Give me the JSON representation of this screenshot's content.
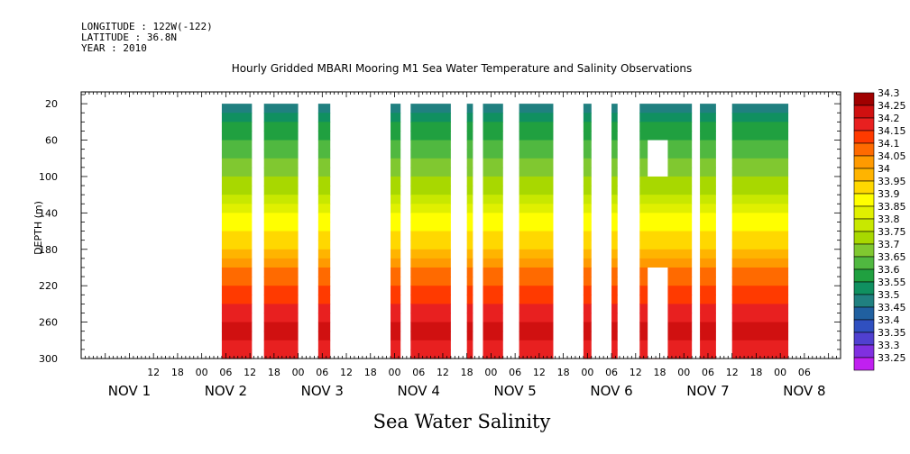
{
  "header": {
    "longitude": "LONGITUDE : 122W(-122)",
    "latitude": "LATITUDE : 36.8N",
    "year": "YEAR : 2010"
  },
  "chart_data": {
    "type": "heatmap",
    "title": "Hourly Gridded MBARI Mooring M1 Sea Water Temperature and Salinity Observations",
    "xlabel": "Sea Water Salinity",
    "ylabel": "DEPTH (m)",
    "x_unit": "hours since NOV 1 00:00 (2010)",
    "xlim": [
      -6,
      183
    ],
    "ylim": [
      300,
      7
    ],
    "y_ticks": [
      20,
      60,
      100,
      140,
      180,
      220,
      260,
      300
    ],
    "x_hour_ticks": [
      {
        "h": 12,
        "label": "12"
      },
      {
        "h": 18,
        "label": "18"
      },
      {
        "h": 24,
        "label": "00"
      },
      {
        "h": 30,
        "label": "06"
      },
      {
        "h": 36,
        "label": "12"
      },
      {
        "h": 42,
        "label": "18"
      },
      {
        "h": 48,
        "label": "00"
      },
      {
        "h": 54,
        "label": "06"
      },
      {
        "h": 60,
        "label": "12"
      },
      {
        "h": 66,
        "label": "18"
      },
      {
        "h": 72,
        "label": "00"
      },
      {
        "h": 78,
        "label": "06"
      },
      {
        "h": 84,
        "label": "12"
      },
      {
        "h": 90,
        "label": "18"
      },
      {
        "h": 96,
        "label": "00"
      },
      {
        "h": 102,
        "label": "06"
      },
      {
        "h": 108,
        "label": "12"
      },
      {
        "h": 114,
        "label": "18"
      },
      {
        "h": 120,
        "label": "00"
      },
      {
        "h": 126,
        "label": "06"
      },
      {
        "h": 132,
        "label": "12"
      },
      {
        "h": 138,
        "label": "18"
      },
      {
        "h": 144,
        "label": "00"
      },
      {
        "h": 150,
        "label": "06"
      },
      {
        "h": 156,
        "label": "12"
      },
      {
        "h": 162,
        "label": "18"
      },
      {
        "h": 168,
        "label": "00"
      },
      {
        "h": 174,
        "label": "06"
      }
    ],
    "x_day_labels": [
      {
        "h": 6,
        "label": "NOV  1"
      },
      {
        "h": 30,
        "label": "NOV  2"
      },
      {
        "h": 54,
        "label": "NOV  3"
      },
      {
        "h": 78,
        "label": "NOV  4"
      },
      {
        "h": 102,
        "label": "NOV  5"
      },
      {
        "h": 126,
        "label": "NOV  6"
      },
      {
        "h": 150,
        "label": "NOV  7"
      },
      {
        "h": 174,
        "label": "NOV  8"
      }
    ],
    "colorbar": {
      "levels": [
        "34.3",
        "34.25",
        "34.2",
        "34.15",
        "34.1",
        "34.05",
        "34",
        "33.95",
        "33.9",
        "33.85",
        "33.8",
        "33.75",
        "33.7",
        "33.65",
        "33.6",
        "33.55",
        "33.5",
        "33.45",
        "33.4",
        "33.35",
        "33.3",
        "33.25"
      ],
      "colors": [
        "#a00000",
        "#d01010",
        "#e82020",
        "#ff3a00",
        "#ff6a00",
        "#ff9a00",
        "#ffb400",
        "#ffd800",
        "#ffff00",
        "#e0f000",
        "#c8e800",
        "#a8d800",
        "#80c830",
        "#50b840",
        "#20a040",
        "#109060",
        "#208080",
        "#2060a0",
        "#3050c0",
        "#5040d0",
        "#8030e0",
        "#c020f0"
      ]
    },
    "gaps_hours": [
      [
        -6,
        29
      ],
      [
        36.5,
        39.5
      ],
      [
        48,
        53
      ],
      [
        56,
        71
      ],
      [
        72,
        72
      ],
      [
        73.5,
        76
      ],
      [
        86,
        90
      ],
      [
        91.5,
        91.5
      ],
      [
        92.5,
        94
      ],
      [
        99,
        103
      ],
      [
        111.5,
        119
      ],
      [
        121,
        126
      ],
      [
        127.5,
        128
      ],
      [
        129,
        133
      ],
      [
        146,
        148
      ],
      [
        152,
        156
      ],
      [
        170,
        183
      ]
    ],
    "data_segments_hours": [
      [
        29,
        36.5
      ],
      [
        39.5,
        48
      ],
      [
        53,
        56
      ],
      [
        71,
        73.5
      ],
      [
        76,
        86
      ],
      [
        90,
        91.5
      ],
      [
        94,
        99
      ],
      [
        103,
        111.5
      ],
      [
        119,
        121
      ],
      [
        126,
        127.5
      ],
      [
        133,
        146
      ],
      [
        148,
        152
      ],
      [
        156,
        170
      ]
    ],
    "blank_boxes": [
      {
        "h0": 135,
        "h1": 140,
        "d0": 60,
        "d1": 100
      },
      {
        "h0": 135,
        "h1": 140,
        "d0": 200,
        "d1": 300
      }
    ],
    "profile": [
      {
        "depth": 20,
        "salinity": 33.5
      },
      {
        "depth": 40,
        "salinity": 33.6
      },
      {
        "depth": 60,
        "salinity": 33.65
      },
      {
        "depth": 80,
        "salinity": 33.7
      },
      {
        "depth": 100,
        "salinity": 33.75
      },
      {
        "depth": 120,
        "salinity": 33.8
      },
      {
        "depth": 140,
        "salinity": 33.9
      },
      {
        "depth": 160,
        "salinity": 33.95
      },
      {
        "depth": 180,
        "salinity": 34.0
      },
      {
        "depth": 200,
        "salinity": 34.1
      },
      {
        "depth": 220,
        "salinity": 34.15
      },
      {
        "depth": 240,
        "salinity": 34.2
      },
      {
        "depth": 260,
        "salinity": 34.25
      },
      {
        "depth": 280,
        "salinity": 34.25
      },
      {
        "depth": 300,
        "salinity": 34.2
      }
    ]
  }
}
